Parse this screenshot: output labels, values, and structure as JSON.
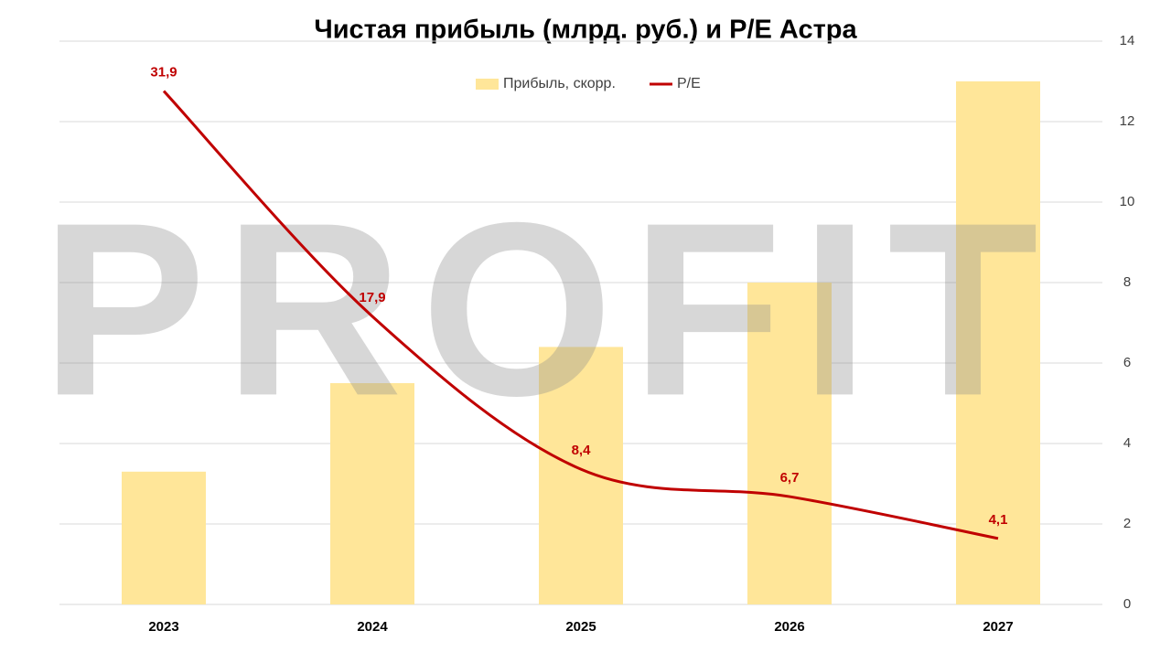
{
  "watermark": "PROFIT",
  "chart_data": {
    "type": "bar-line",
    "title": "Чистая прибыль (млрд. руб.) и P/E Астра",
    "categories": [
      "2023",
      "2024",
      "2025",
      "2026",
      "2027"
    ],
    "series": [
      {
        "name": "Прибыль, скорр.",
        "type": "bar",
        "color": "#ffe699",
        "values": [
          3.3,
          5.5,
          6.4,
          8.0,
          13.0
        ]
      },
      {
        "name": "P/E",
        "type": "line",
        "axis": "y2",
        "color": "#c00000",
        "values": [
          31.9,
          17.9,
          8.4,
          6.7,
          4.1
        ],
        "value_labels": [
          "31,9",
          "17,9",
          "8,4",
          "6,7",
          "4,1"
        ]
      }
    ],
    "ylim": [
      0,
      14
    ],
    "yticks": [
      0,
      2,
      4,
      6,
      8,
      10,
      12,
      14
    ],
    "y2lim": [
      0,
      35
    ],
    "grid": true,
    "legend": "top"
  }
}
